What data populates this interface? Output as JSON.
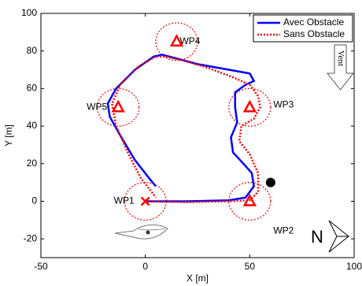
{
  "chart_data": {
    "type": "line",
    "xlabel": "X [m]",
    "ylabel": "Y [m]",
    "xlim": [
      -50,
      100
    ],
    "xticks": [
      -50,
      0,
      50,
      100
    ],
    "ylim": [
      -30,
      100
    ],
    "yticks": [
      -20,
      0,
      20,
      40,
      60,
      80,
      100
    ],
    "legend": "upper right",
    "series": [
      {
        "name": "Avec Obstacle",
        "color": "#0000ff",
        "style": "solid",
        "x": [
          0,
          20,
          40,
          48,
          52,
          51,
          47,
          42,
          41,
          44,
          43,
          43,
          48,
          52,
          50,
          40,
          25,
          15,
          8,
          4,
          -5,
          -14,
          -18,
          -17,
          -12,
          -5,
          2,
          5
        ],
        "values": [
          0,
          0,
          0.5,
          2,
          8,
          15,
          20,
          26,
          34,
          42,
          50,
          58,
          62,
          64,
          68,
          70,
          73,
          76,
          78,
          77,
          70,
          60,
          52,
          45,
          35,
          22,
          12,
          8
        ]
      },
      {
        "name": "Sans Obstacle",
        "color": "#ff0000",
        "style": "dotted",
        "x": [
          0,
          20,
          40,
          50,
          54,
          54,
          50,
          45,
          46,
          52,
          55,
          54,
          50,
          42,
          30,
          18,
          10,
          5,
          -3,
          -12,
          -16,
          -14,
          -8,
          -2,
          3,
          5
        ],
        "values": [
          0,
          -0.5,
          0,
          0.5,
          5,
          15,
          25,
          32,
          40,
          44,
          50,
          56,
          62,
          66,
          71,
          75,
          77,
          77,
          72,
          62,
          52,
          40,
          25,
          12,
          5,
          2
        ]
      }
    ],
    "waypoints": [
      {
        "label": "WP1",
        "x": 0,
        "y": 0,
        "marker": "x"
      },
      {
        "label": "WP2",
        "x": 50,
        "y": 0,
        "marker": "triangle"
      },
      {
        "label": "WP3",
        "x": 50,
        "y": 50,
        "marker": "triangle"
      },
      {
        "label": "WP4",
        "x": 15,
        "y": 85,
        "marker": "triangle"
      },
      {
        "label": "WP5",
        "x": -13,
        "y": 50,
        "marker": "triangle"
      }
    ],
    "waypoint_radius": 10,
    "obstacle": {
      "x": 60,
      "y": 10
    },
    "wind_label": "Vent",
    "north_label": "N"
  }
}
